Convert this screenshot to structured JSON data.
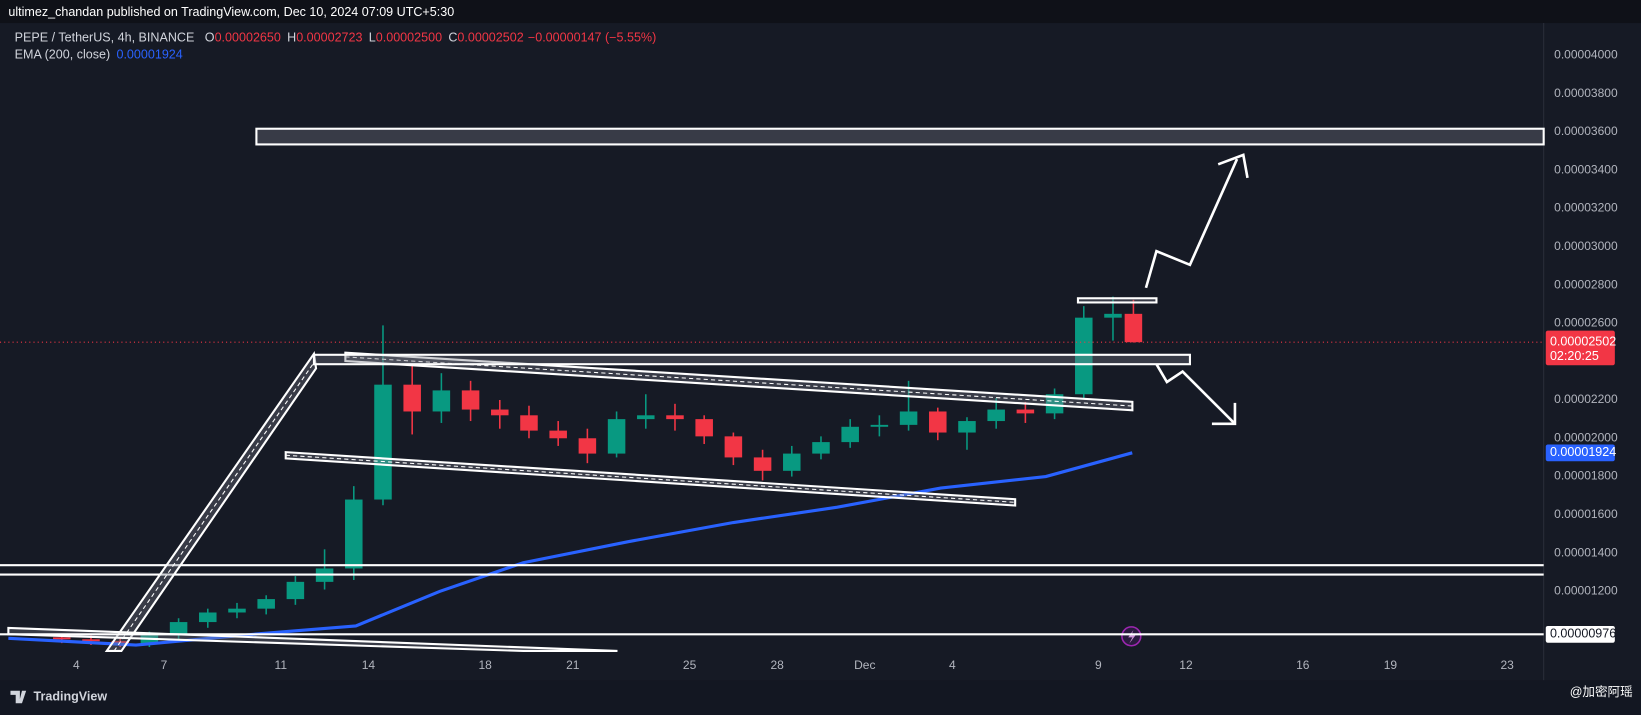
{
  "header": {
    "publisher": "ultimez_chandan published on TradingView.com, Dec 10, 2024 07:09 UTC+5:30"
  },
  "chart_data": {
    "type": "candlestick",
    "symbol": "PEPE / TetherUS, 4h, BINANCE",
    "ohlc_legend": [
      {
        "label": "O",
        "value": "0.00002650"
      },
      {
        "label": "H",
        "value": "0.00002723"
      },
      {
        "label": "L",
        "value": "0.00002500"
      },
      {
        "label": "C",
        "value": "0.00002502"
      }
    ],
    "change": "−0.00000147 (−5.55%)",
    "up_color": "#089981",
    "down_color": "#f23645",
    "x": [
      3.5,
      4.5,
      5.5,
      6.5,
      7.5,
      8.5,
      9.5,
      10.5,
      11.5,
      12.5,
      13.5,
      14.5,
      15.5,
      16.5,
      17.5,
      18.5,
      19.5,
      20.5,
      21.5,
      22.5,
      23.5,
      24.5,
      25.5,
      26.5,
      27.5,
      28.5,
      29.5,
      30.5,
      31.5,
      32.5,
      33.5,
      34.5,
      35.5,
      36.5,
      37.5,
      38.5,
      39.5,
      40.2
    ],
    "open": [
      9.6e-06,
      9.5e-06,
      9.4e-06,
      9.3e-06,
      9.7e-06,
      1.04e-05,
      1.09e-05,
      1.11e-05,
      1.16e-05,
      1.25e-05,
      1.32e-05,
      1.68e-05,
      2.28e-05,
      2.14e-05,
      2.25e-05,
      2.15e-05,
      2.12e-05,
      2.04e-05,
      2e-05,
      1.92e-05,
      2.1e-05,
      2.12e-05,
      2.1e-05,
      2.01e-05,
      1.9e-05,
      1.83e-05,
      1.92e-05,
      1.98e-05,
      2.06e-05,
      2.07e-05,
      2.14e-05,
      2.03e-05,
      2.09e-05,
      2.15e-05,
      2.13e-05,
      2.23e-05,
      2.63e-05,
      2.65e-05
    ],
    "high": [
      9.8e-06,
      9.7e-06,
      9.6e-06,
      9.9e-06,
      1.06e-05,
      1.11e-05,
      1.14e-05,
      1.18e-05,
      1.28e-05,
      1.42e-05,
      1.75e-05,
      2.59e-05,
      2.39e-05,
      2.34e-05,
      2.3e-05,
      2.2e-05,
      2.17e-05,
      2.09e-05,
      2.05e-05,
      2.14e-05,
      2.23e-05,
      2.18e-05,
      2.12e-05,
      2.03e-05,
      1.94e-05,
      1.96e-05,
      2.01e-05,
      2.1e-05,
      2.12e-05,
      2.3e-05,
      2.16e-05,
      2.11e-05,
      2.21e-05,
      2.19e-05,
      2.26e-05,
      2.69e-05,
      2.74e-05,
      2.723e-05
    ],
    "low": [
      9.3e-06,
      9.2e-06,
      9.1e-06,
      9.1e-06,
      9.5e-06,
      1.01e-05,
      1.06e-05,
      1.08e-05,
      1.13e-05,
      1.21e-05,
      1.26e-05,
      1.65e-05,
      2.02e-05,
      2.08e-05,
      2.09e-05,
      2.05e-05,
      2e-05,
      1.96e-05,
      1.87e-05,
      1.9e-05,
      2.05e-05,
      2.04e-05,
      1.97e-05,
      1.86e-05,
      1.78e-05,
      1.8e-05,
      1.89e-05,
      1.95e-05,
      2.01e-05,
      2.04e-05,
      1.99e-05,
      1.94e-05,
      2.05e-05,
      2.08e-05,
      2.1e-05,
      2.21e-05,
      2.51e-05,
      2.5e-05
    ],
    "close": [
      9.5e-06,
      9.4e-06,
      9.3e-06,
      9.7e-06,
      1.04e-05,
      1.09e-05,
      1.11e-05,
      1.16e-05,
      1.25e-05,
      1.32e-05,
      1.68e-05,
      2.28e-05,
      2.14e-05,
      2.25e-05,
      2.15e-05,
      2.12e-05,
      2.04e-05,
      2e-05,
      1.92e-05,
      2.1e-05,
      2.12e-05,
      2.1e-05,
      2.01e-05,
      1.9e-05,
      1.83e-05,
      1.92e-05,
      1.98e-05,
      2.06e-05,
      2.07e-05,
      2.14e-05,
      2.03e-05,
      2.09e-05,
      2.15e-05,
      2.13e-05,
      2.23e-05,
      2.63e-05,
      2.65e-05,
      2.502e-05
    ],
    "series": [
      {
        "name": "EMA (200, close)",
        "color": "#2962ff",
        "x": [
          1.67,
          6.04,
          10.34,
          13.57,
          16.44,
          19.3,
          22.9,
          26.5,
          30.06,
          33.6,
          37.2,
          40.16
        ],
        "values": [
          9.55e-06,
          9.2e-06,
          9.8e-06,
          1.02e-05,
          1.2e-05,
          1.35e-05,
          1.46e-05,
          1.56e-05,
          1.64e-05,
          1.74e-05,
          1.8e-05,
          1.924e-05
        ],
        "last": {
          "value": 1.924e-05,
          "label": "0.00001924"
        }
      }
    ],
    "last_price": {
      "value": 2.502e-05,
      "label": "0.00002502",
      "countdown": "02:20:25"
    },
    "level": {
      "value": 9.76e-06,
      "label": "0.00000976"
    },
    "ylim": [
      9e-06,
      4.169e-05
    ],
    "yticks": [
      {
        "value": 1.2e-05,
        "label": "0.00001200"
      },
      {
        "value": 1.4e-05,
        "label": "0.00001400"
      },
      {
        "value": 1.6e-05,
        "label": "0.00001600"
      },
      {
        "value": 1.8e-05,
        "label": "0.00001800"
      },
      {
        "value": 2e-05,
        "label": "0.00002000"
      },
      {
        "value": 2.2e-05,
        "label": "0.00002200"
      },
      {
        "value": 2.6e-05,
        "label": "0.00002600"
      },
      {
        "value": 2.8e-05,
        "label": "0.00002800"
      },
      {
        "value": 3e-05,
        "label": "0.00003000"
      },
      {
        "value": 3.2e-05,
        "label": "0.00003200"
      },
      {
        "value": 3.4e-05,
        "label": "0.00003400"
      },
      {
        "value": 3.6e-05,
        "label": "0.00003600"
      },
      {
        "value": 3.8e-05,
        "label": "0.00003800"
      },
      {
        "value": 4e-05,
        "label": "0.00004000"
      }
    ],
    "xlim": [
      1.384,
      54.25
    ],
    "xticks": [
      4,
      7,
      11,
      14,
      18,
      21,
      25,
      28,
      {
        "value": 31,
        "label": "Dec"
      },
      {
        "value": 34,
        "label": "4"
      },
      {
        "value": 39,
        "label": "9"
      },
      {
        "value": 42,
        "label": "12"
      },
      {
        "value": 46,
        "label": "16"
      },
      {
        "value": 49,
        "label": "19"
      },
      {
        "value": 53,
        "label": "23"
      }
    ],
    "grid": false
  },
  "footer": {
    "brand": "TradingView",
    "watermark": "@加密阿瑶"
  }
}
